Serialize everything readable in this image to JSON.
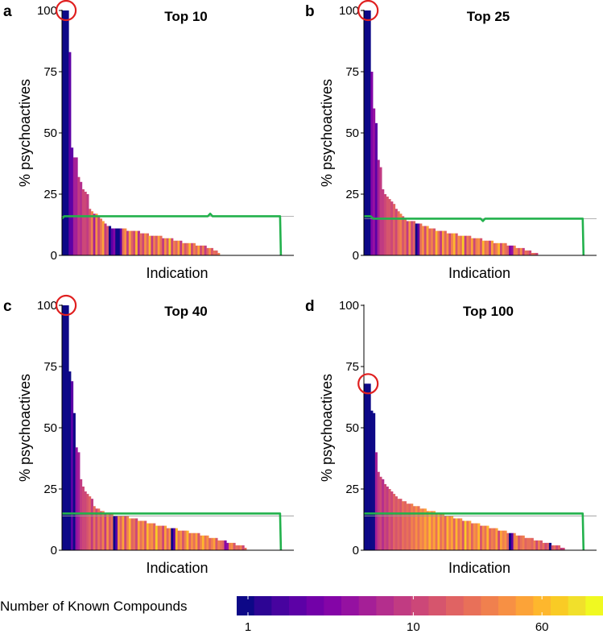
{
  "colors": {
    "baseline_line": "#22b14c",
    "highlight_circle": "#e02020",
    "axis": "#000000",
    "palette": [
      "#0d0887",
      "#2d0594",
      "#47039f",
      "#5c01a6",
      "#7201a8",
      "#8405a7",
      "#9511a1",
      "#a51f97",
      "#b42e8d",
      "#c13b82",
      "#cc4778",
      "#d6556d",
      "#e06363",
      "#e87059",
      "#f0804e",
      "#f79044",
      "#fca338",
      "#feb72d",
      "#f9cb25",
      "#f1e02b",
      "#f0f921"
    ]
  },
  "legend": {
    "title": "Number of Known Compounds",
    "tick_labels": [
      "1",
      "10",
      "60"
    ],
    "tick_values": [
      1,
      10,
      60
    ],
    "scale": "log",
    "range": [
      1,
      120
    ]
  },
  "chart_data": [
    {
      "type": "bar",
      "panel_letter": "a",
      "title": "Top 10",
      "xlabel": "Indication",
      "ylabel": "% psychoactives",
      "ylim": [
        0,
        100
      ],
      "yticks": [
        "0",
        "25",
        "50",
        "75",
        "100"
      ],
      "n_slots": 100,
      "highlight_index": 0,
      "values": [
        100,
        100,
        100,
        83,
        44,
        40,
        40,
        32,
        30,
        27,
        26,
        25,
        19,
        18,
        17,
        17,
        16,
        15,
        14,
        13,
        12,
        12,
        11,
        11,
        11,
        11,
        11,
        11,
        11,
        10,
        10,
        10,
        10,
        10,
        10,
        9,
        9,
        9,
        9,
        8,
        8,
        8,
        8,
        8,
        8,
        7,
        7,
        7,
        7,
        7,
        6,
        6,
        6,
        6,
        5,
        5,
        5,
        5,
        5,
        5,
        4,
        4,
        4,
        4,
        4,
        3,
        3,
        3,
        2,
        2,
        1
      ],
      "compound_counts": [
        1,
        1,
        1,
        2,
        2,
        5,
        6,
        9,
        7,
        10,
        12,
        8,
        15,
        30,
        6,
        40,
        11,
        25,
        50,
        9,
        14,
        1,
        2,
        3,
        1,
        1,
        2,
        20,
        35,
        8,
        45,
        18,
        12,
        60,
        7,
        24,
        10,
        38,
        16,
        55,
        9,
        28,
        13,
        42,
        21,
        8,
        33,
        15,
        70,
        11,
        26,
        19,
        48,
        9,
        37,
        14,
        22,
        65,
        10,
        30,
        17,
        44,
        12,
        28,
        8,
        19,
        35,
        13,
        24,
        16,
        30
      ],
      "baseline": [
        15,
        16,
        16,
        16,
        16,
        16,
        16,
        16,
        16,
        16,
        16,
        16,
        16,
        16,
        16,
        16,
        16,
        16,
        16,
        16,
        16,
        16,
        16,
        16,
        16,
        16,
        16,
        16,
        16,
        16,
        16,
        16,
        16,
        16,
        16,
        16,
        16,
        16,
        16,
        16,
        16,
        16,
        16,
        16,
        16,
        16,
        16,
        16,
        16,
        16,
        16,
        16,
        16,
        16,
        16,
        16,
        16,
        16,
        16,
        16,
        16,
        16,
        16,
        16,
        16,
        17,
        16,
        16,
        16,
        16,
        16,
        16,
        16,
        16,
        16,
        16,
        16,
        16,
        16,
        16,
        16,
        16,
        16,
        16,
        16,
        16,
        16,
        16,
        16,
        16,
        16,
        16,
        16,
        16,
        16,
        16,
        0
      ],
      "reference_line": 16
    },
    {
      "type": "bar",
      "panel_letter": "b",
      "title": "Top 25",
      "xlabel": "Indication",
      "ylabel": "% psychoactives",
      "ylim": [
        0,
        100
      ],
      "yticks": [
        "0",
        "25",
        "50",
        "75",
        "100"
      ],
      "n_slots": 100,
      "highlight_index": 0,
      "values": [
        100,
        100,
        100,
        75,
        60,
        54,
        39,
        36,
        27,
        25,
        24,
        23,
        22,
        21,
        19,
        18,
        17,
        16,
        15,
        14,
        14,
        14,
        14,
        13,
        13,
        13,
        12,
        12,
        12,
        11,
        11,
        11,
        10,
        10,
        10,
        10,
        10,
        9,
        9,
        9,
        9,
        9,
        8,
        8,
        8,
        8,
        8,
        8,
        7,
        7,
        7,
        7,
        7,
        6,
        6,
        6,
        6,
        6,
        5,
        5,
        5,
        5,
        5,
        5,
        4,
        4,
        4,
        4,
        3,
        3,
        3,
        3,
        2,
        2,
        2,
        1,
        1,
        1
      ],
      "compound_counts": [
        1,
        1,
        1,
        3,
        4,
        2,
        6,
        8,
        9,
        11,
        13,
        15,
        10,
        18,
        12,
        20,
        30,
        14,
        25,
        9,
        40,
        12,
        16,
        1,
        2,
        22,
        35,
        10,
        50,
        18,
        28,
        13,
        60,
        24,
        8,
        44,
        19,
        33,
        11,
        27,
        55,
        15,
        38,
        21,
        70,
        9,
        30,
        17,
        48,
        12,
        26,
        40,
        14,
        62,
        20,
        32,
        9,
        45,
        16,
        28,
        52,
        12,
        36,
        22,
        19,
        3,
        4,
        26,
        30,
        14,
        38,
        9,
        24,
        18,
        12,
        20,
        16,
        10
      ],
      "baseline": [
        16,
        16,
        16,
        16,
        15,
        15,
        15,
        15,
        15,
        15,
        15,
        15,
        15,
        15,
        15,
        15,
        15,
        15,
        15,
        15,
        15,
        15,
        15,
        15,
        15,
        15,
        15,
        15,
        15,
        15,
        15,
        15,
        15,
        15,
        15,
        15,
        15,
        15,
        15,
        15,
        15,
        15,
        15,
        15,
        15,
        15,
        15,
        15,
        15,
        15,
        15,
        15,
        14,
        15,
        15,
        15,
        15,
        15,
        15,
        15,
        15,
        15,
        15,
        15,
        15,
        15,
        15,
        15,
        15,
        15,
        15,
        15,
        15,
        15,
        15,
        15,
        15,
        15,
        15,
        15,
        15,
        15,
        15,
        15,
        15,
        15,
        15,
        15,
        15,
        15,
        15,
        15,
        15,
        15,
        15,
        15,
        0
      ],
      "reference_line": 15
    },
    {
      "type": "bar",
      "panel_letter": "c",
      "title": "Top 40",
      "xlabel": "Indication",
      "ylabel": "% psychoactives",
      "ylim": [
        0,
        100
      ],
      "yticks": [
        "0",
        "25",
        "50",
        "75",
        "100"
      ],
      "n_slots": 100,
      "highlight_index": 0,
      "values": [
        100,
        100,
        100,
        73,
        69,
        56,
        42,
        40,
        29,
        26,
        24,
        23,
        22,
        21,
        18,
        17,
        17,
        16,
        16,
        15,
        15,
        15,
        15,
        14,
        14,
        14,
        14,
        14,
        14,
        14,
        13,
        13,
        13,
        13,
        12,
        12,
        12,
        12,
        11,
        11,
        11,
        11,
        10,
        10,
        10,
        10,
        10,
        9,
        9,
        9,
        9,
        9,
        8,
        8,
        8,
        8,
        8,
        7,
        7,
        7,
        7,
        7,
        6,
        6,
        6,
        6,
        5,
        5,
        5,
        5,
        4,
        4,
        4,
        4,
        3,
        3,
        3,
        3,
        2,
        2,
        2,
        2,
        1
      ],
      "compound_counts": [
        1,
        1,
        1,
        1,
        2,
        1,
        4,
        6,
        8,
        10,
        12,
        14,
        16,
        9,
        20,
        11,
        25,
        13,
        30,
        8,
        40,
        15,
        22,
        1,
        2,
        35,
        18,
        50,
        12,
        28,
        60,
        17,
        24,
        10,
        44,
        20,
        33,
        14,
        55,
        26,
        38,
        16,
        70,
        21,
        30,
        12,
        48,
        19,
        36,
        1,
        2,
        62,
        25,
        40,
        15,
        28,
        52,
        18,
        34,
        22,
        45,
        13,
        29,
        58,
        20,
        38,
        16,
        26,
        42,
        14,
        31,
        24,
        19,
        3,
        4,
        27,
        35,
        15,
        22,
        18,
        30,
        12,
        20
      ],
      "baseline": [
        15,
        15,
        15,
        15,
        15,
        15,
        15,
        15,
        15,
        15,
        15,
        15,
        15,
        15,
        15,
        15,
        15,
        15,
        15,
        15,
        15,
        15,
        15,
        15,
        15,
        15,
        15,
        15,
        15,
        15,
        15,
        15,
        15,
        15,
        15,
        15,
        15,
        15,
        15,
        15,
        15,
        15,
        15,
        15,
        15,
        15,
        15,
        15,
        15,
        15,
        15,
        15,
        15,
        15,
        15,
        15,
        15,
        15,
        15,
        15,
        15,
        15,
        15,
        15,
        15,
        15,
        15,
        15,
        15,
        15,
        15,
        15,
        15,
        15,
        15,
        15,
        15,
        15,
        15,
        15,
        15,
        15,
        15,
        15,
        15,
        15,
        15,
        15,
        15,
        15,
        15,
        15,
        15,
        15,
        15,
        15,
        0
      ],
      "reference_line": 14
    },
    {
      "type": "bar",
      "panel_letter": "d",
      "title": "Top 100",
      "xlabel": "Indication",
      "ylabel": "% psychoactives",
      "ylim": [
        0,
        100
      ],
      "yticks": [
        "0",
        "25",
        "50",
        "75",
        "100"
      ],
      "n_slots": 100,
      "highlight_index": 0,
      "values": [
        68,
        68,
        68,
        57,
        56,
        40,
        32,
        30,
        29,
        27,
        26,
        25,
        24,
        23,
        22,
        21,
        21,
        20,
        20,
        19,
        19,
        19,
        18,
        18,
        18,
        17,
        17,
        17,
        16,
        16,
        16,
        16,
        15,
        15,
        15,
        15,
        14,
        14,
        14,
        14,
        13,
        13,
        13,
        13,
        12,
        12,
        12,
        12,
        11,
        11,
        11,
        11,
        10,
        10,
        10,
        10,
        9,
        9,
        9,
        9,
        8,
        8,
        8,
        8,
        7,
        7,
        7,
        7,
        6,
        6,
        6,
        6,
        5,
        5,
        5,
        5,
        4,
        4,
        4,
        4,
        3,
        3,
        3,
        3,
        2,
        2,
        2,
        2,
        1,
        1
      ],
      "compound_counts": [
        1,
        1,
        1,
        1,
        1,
        6,
        8,
        10,
        7,
        12,
        9,
        14,
        11,
        16,
        13,
        18,
        15,
        20,
        17,
        25,
        19,
        30,
        22,
        35,
        24,
        40,
        26,
        50,
        28,
        60,
        30,
        45,
        20,
        55,
        25,
        38,
        18,
        65,
        28,
        42,
        16,
        52,
        24,
        36,
        14,
        70,
        22,
        48,
        19,
        33,
        27,
        58,
        15,
        40,
        21,
        62,
        17,
        30,
        23,
        44,
        12,
        50,
        26,
        35,
        18,
        1,
        2,
        28,
        40,
        14,
        22,
        32,
        16,
        20,
        24,
        18,
        26,
        12,
        30,
        15,
        22,
        10,
        18,
        1,
        14,
        20,
        12,
        16,
        9,
        11
      ],
      "baseline": [
        15,
        15,
        15,
        15,
        15,
        15,
        15,
        15,
        15,
        15,
        15,
        15,
        15,
        15,
        15,
        15,
        15,
        15,
        15,
        15,
        15,
        15,
        15,
        15,
        15,
        15,
        15,
        15,
        15,
        15,
        15,
        15,
        15,
        15,
        15,
        15,
        15,
        15,
        15,
        15,
        15,
        15,
        15,
        15,
        15,
        15,
        15,
        15,
        15,
        15,
        15,
        15,
        15,
        15,
        15,
        15,
        15,
        15,
        15,
        15,
        15,
        15,
        15,
        15,
        15,
        15,
        15,
        15,
        15,
        15,
        15,
        15,
        15,
        15,
        15,
        15,
        15,
        15,
        15,
        15,
        15,
        15,
        15,
        15,
        15,
        15,
        15,
        15,
        15,
        15,
        15,
        15,
        15,
        15,
        15,
        15,
        0
      ],
      "reference_line": 14
    }
  ]
}
